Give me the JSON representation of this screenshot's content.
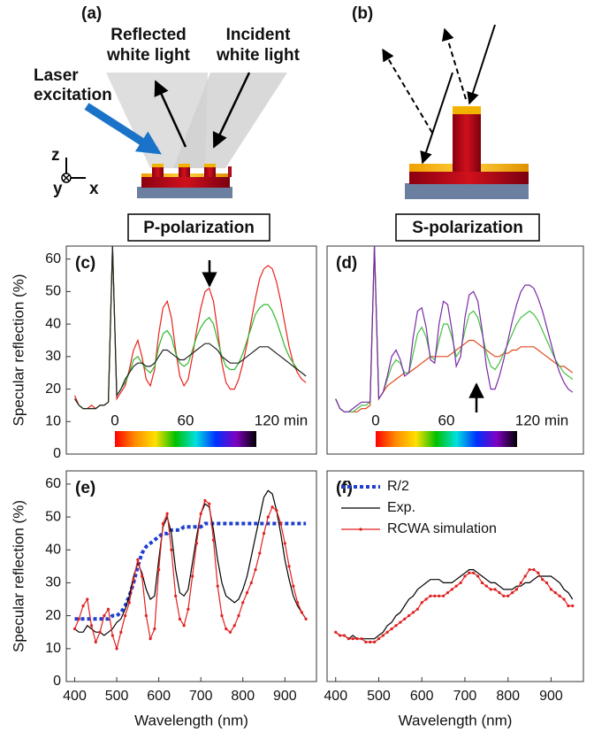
{
  "schematic": {
    "panel_a": "(a)",
    "panel_b": "(b)",
    "reflected_label": [
      "Reflected",
      "white light"
    ],
    "incident_label": [
      "Incident",
      "white light"
    ],
    "laser_label": [
      "Laser",
      "excitation"
    ],
    "axis_z": "z",
    "axis_y": "y",
    "axis_x": "x"
  },
  "polarization_labels": [
    "P-polarization",
    "S-polarization"
  ],
  "chart_data": [
    {
      "type": "line",
      "panel_label": "(c)",
      "y_label": "Specular reflection (%)",
      "xlim": [
        380,
        975
      ],
      "ylim": [
        0,
        64
      ],
      "yticks": [
        0,
        10,
        20,
        30,
        40,
        50,
        60
      ],
      "colorbar": {
        "labels": [
          "0",
          "60",
          "120 min"
        ],
        "colors": [
          "#ff0000",
          "#ff8c00",
          "#ffe000",
          "#00c000",
          "#00e0e0",
          "#0030ff",
          "#8000c0",
          "#000000"
        ]
      },
      "x": [
        400,
        410,
        420,
        430,
        440,
        450,
        460,
        470,
        480,
        490,
        500,
        510,
        520,
        530,
        540,
        550,
        560,
        570,
        580,
        590,
        600,
        610,
        620,
        630,
        640,
        650,
        660,
        670,
        680,
        690,
        700,
        710,
        720,
        730,
        740,
        750,
        760,
        770,
        780,
        790,
        800,
        810,
        820,
        830,
        840,
        850,
        860,
        870,
        880,
        890,
        900,
        910,
        920,
        930,
        940,
        950
      ],
      "series": [
        {
          "color": "#e8231e",
          "values": [
            18,
            15,
            14,
            14,
            15,
            14,
            15,
            15,
            16,
            64,
            17,
            19,
            21,
            26,
            32,
            35,
            30,
            23,
            21,
            26,
            37,
            45,
            47,
            42,
            32,
            24,
            21,
            23,
            30,
            38,
            45,
            50,
            51,
            47,
            38,
            28,
            22,
            20,
            20,
            23,
            28,
            34,
            41,
            48,
            54,
            57,
            58,
            57,
            53,
            47,
            40,
            33,
            28,
            25,
            23,
            22
          ]
        },
        {
          "color": "#2db82d",
          "values": [
            17,
            15,
            14,
            14,
            14,
            14,
            15,
            15,
            16,
            64,
            18,
            20,
            22,
            25,
            29,
            30,
            28,
            26,
            25,
            27,
            33,
            37,
            38,
            36,
            31,
            28,
            27,
            28,
            32,
            36,
            39,
            41,
            42,
            40,
            35,
            30,
            27,
            26,
            26,
            28,
            31,
            35,
            39,
            43,
            45,
            46,
            46,
            44,
            41,
            37,
            33,
            30,
            28,
            26,
            25,
            24
          ]
        },
        {
          "color": "#222222",
          "values": [
            17,
            15,
            14,
            14,
            14,
            14,
            15,
            15,
            16,
            64,
            18,
            20,
            23,
            25,
            27,
            28,
            28,
            27,
            27,
            28,
            30,
            32,
            32,
            31,
            30,
            29,
            29,
            30,
            31,
            32,
            33,
            34,
            34,
            33,
            32,
            30,
            29,
            28,
            28,
            28,
            29,
            30,
            31,
            32,
            33,
            33,
            33,
            32,
            31,
            30,
            29,
            28,
            27,
            26,
            25,
            24
          ]
        }
      ]
    },
    {
      "type": "line",
      "panel_label": "(d)",
      "xlim": [
        380,
        975
      ],
      "ylim": [
        0,
        64
      ],
      "colorbar": {
        "labels": [
          "0",
          "60",
          "120 min"
        ],
        "colors": [
          "#ff0000",
          "#ff8c00",
          "#ffe000",
          "#00c000",
          "#00e0e0",
          "#0030ff",
          "#8000c0",
          "#000000"
        ]
      },
      "x": [
        400,
        410,
        420,
        430,
        440,
        450,
        460,
        470,
        480,
        490,
        500,
        510,
        520,
        530,
        540,
        550,
        560,
        570,
        580,
        590,
        600,
        610,
        620,
        630,
        640,
        650,
        660,
        670,
        680,
        690,
        700,
        710,
        720,
        730,
        740,
        750,
        760,
        770,
        780,
        790,
        800,
        810,
        820,
        830,
        840,
        850,
        860,
        870,
        880,
        890,
        900,
        910,
        920,
        930,
        940,
        950
      ],
      "series": [
        {
          "color": "#e0481c",
          "values": [
            17,
            14,
            13,
            13,
            13,
            13,
            14,
            14,
            15,
            64,
            17,
            19,
            21,
            22,
            23,
            24,
            25,
            25,
            26,
            27,
            28,
            29,
            30,
            30,
            30,
            30,
            30,
            31,
            32,
            33,
            34,
            35,
            35,
            34,
            33,
            32,
            31,
            30,
            30,
            31,
            31,
            32,
            32,
            33,
            33,
            33,
            33,
            32,
            31,
            30,
            29,
            28,
            27,
            27,
            26,
            25
          ]
        },
        {
          "color": "#44c044",
          "values": [
            17,
            14,
            13,
            13,
            13,
            14,
            15,
            15,
            16,
            64,
            17,
            19,
            23,
            27,
            29,
            28,
            25,
            25,
            31,
            37,
            39,
            36,
            30,
            29,
            35,
            40,
            40,
            36,
            30,
            32,
            38,
            43,
            44,
            42,
            37,
            31,
            27,
            26,
            28,
            31,
            34,
            37,
            40,
            42,
            43,
            44,
            43,
            41,
            38,
            35,
            32,
            29,
            27,
            25,
            24,
            23
          ]
        },
        {
          "color": "#7a2aa8",
          "values": [
            17,
            14,
            13,
            13,
            14,
            15,
            16,
            16,
            16,
            64,
            17,
            19,
            24,
            30,
            32,
            29,
            24,
            25,
            36,
            44,
            45,
            39,
            29,
            28,
            40,
            47,
            46,
            38,
            27,
            30,
            42,
            49,
            50,
            47,
            38,
            27,
            20,
            20,
            24,
            29,
            35,
            41,
            46,
            50,
            52,
            52,
            51,
            48,
            44,
            39,
            34,
            29,
            25,
            22,
            20,
            19
          ]
        }
      ]
    },
    {
      "type": "line",
      "panel_label": "(e)",
      "y_label": "Specular reflection (%)",
      "x_label": "Wavelength (nm)",
      "xlim": [
        380,
        975
      ],
      "ylim": [
        0,
        64
      ],
      "xticks": [
        400,
        500,
        600,
        700,
        800,
        900
      ],
      "yticks": [
        0,
        10,
        20,
        30,
        40,
        50,
        60
      ],
      "legend": true,
      "x": [
        400,
        410,
        420,
        430,
        440,
        450,
        460,
        470,
        480,
        490,
        500,
        510,
        520,
        530,
        540,
        550,
        560,
        570,
        580,
        590,
        600,
        610,
        620,
        630,
        640,
        650,
        660,
        670,
        680,
        690,
        700,
        710,
        720,
        730,
        740,
        750,
        760,
        770,
        780,
        790,
        800,
        810,
        820,
        830,
        840,
        850,
        860,
        870,
        880,
        890,
        900,
        910,
        920,
        930,
        940,
        950
      ],
      "series": [
        {
          "name": "R/2",
          "color": "#1f3fd1",
          "style": "dotted",
          "values": [
            19,
            19,
            19,
            19,
            19,
            19,
            19,
            19,
            19,
            20,
            20,
            21,
            23,
            26,
            30,
            35,
            39,
            41,
            42,
            43,
            44,
            45,
            45,
            46,
            46,
            46,
            47,
            47,
            47,
            47,
            47,
            48,
            48,
            48,
            48,
            48,
            48,
            48,
            48,
            48,
            48,
            48,
            48,
            48,
            48,
            48,
            48,
            48,
            48,
            48,
            48,
            48,
            48,
            48,
            48,
            48
          ]
        },
        {
          "name": "Exp.",
          "color": "#000000",
          "values": [
            16,
            15,
            15,
            17,
            16,
            15,
            15,
            14,
            15,
            16,
            18,
            19,
            22,
            26,
            32,
            36,
            33,
            28,
            25,
            26,
            37,
            47,
            50,
            45,
            34,
            27,
            26,
            28,
            36,
            44,
            51,
            54,
            53,
            46,
            37,
            30,
            26,
            25,
            24,
            25,
            28,
            32,
            38,
            44,
            50,
            56,
            58,
            57,
            52,
            45,
            37,
            31,
            26,
            23,
            21,
            19
          ]
        },
        {
          "name": "RCWA simulation",
          "color": "#e02020",
          "markers": true,
          "values": [
            16,
            19,
            23,
            25,
            17,
            12,
            15,
            20,
            22,
            14,
            10,
            15,
            20,
            24,
            31,
            37,
            32,
            20,
            13,
            16,
            34,
            48,
            51,
            40,
            26,
            19,
            17,
            22,
            32,
            42,
            51,
            55,
            54,
            43,
            29,
            20,
            16,
            15,
            17,
            20,
            24,
            27,
            30,
            34,
            39,
            45,
            50,
            53,
            52,
            48,
            42,
            35,
            29,
            24,
            21,
            19
          ]
        }
      ]
    },
    {
      "type": "line",
      "panel_label": "(f)",
      "x_label": "Wavelength (nm)",
      "xlim": [
        380,
        975
      ],
      "ylim": [
        0,
        64
      ],
      "xticks": [
        400,
        500,
        600,
        700,
        800,
        900
      ],
      "x": [
        400,
        410,
        420,
        430,
        440,
        450,
        460,
        470,
        480,
        490,
        500,
        510,
        520,
        530,
        540,
        550,
        560,
        570,
        580,
        590,
        600,
        610,
        620,
        630,
        640,
        650,
        660,
        670,
        680,
        690,
        700,
        710,
        720,
        730,
        740,
        750,
        760,
        770,
        780,
        790,
        800,
        810,
        820,
        830,
        840,
        850,
        860,
        870,
        880,
        890,
        900,
        910,
        920,
        930,
        940,
        950
      ],
      "series": [
        {
          "color": "#000000",
          "values": [
            15,
            14,
            14,
            13,
            14,
            13,
            13,
            13,
            13,
            13,
            14,
            15,
            17,
            18,
            20,
            21,
            23,
            25,
            26,
            28,
            29,
            30,
            31,
            31,
            31,
            30,
            30,
            30,
            31,
            32,
            33,
            34,
            34,
            33,
            32,
            31,
            30,
            30,
            29,
            28,
            28,
            28,
            29,
            29,
            30,
            30,
            31,
            32,
            32,
            32,
            32,
            31,
            30,
            28,
            27,
            25
          ]
        },
        {
          "color": "#e02020",
          "markers": true,
          "values": [
            15,
            14,
            14,
            13,
            13,
            13,
            13,
            12,
            12,
            12,
            13,
            14,
            15,
            16,
            17,
            18,
            19,
            20,
            21,
            22,
            24,
            25,
            26,
            26,
            26,
            26,
            27,
            28,
            29,
            30,
            32,
            33,
            33,
            32,
            30,
            29,
            28,
            28,
            27,
            26,
            26,
            27,
            28,
            30,
            32,
            34,
            34,
            33,
            31,
            30,
            28,
            27,
            26,
            25,
            23,
            23
          ]
        }
      ]
    }
  ]
}
